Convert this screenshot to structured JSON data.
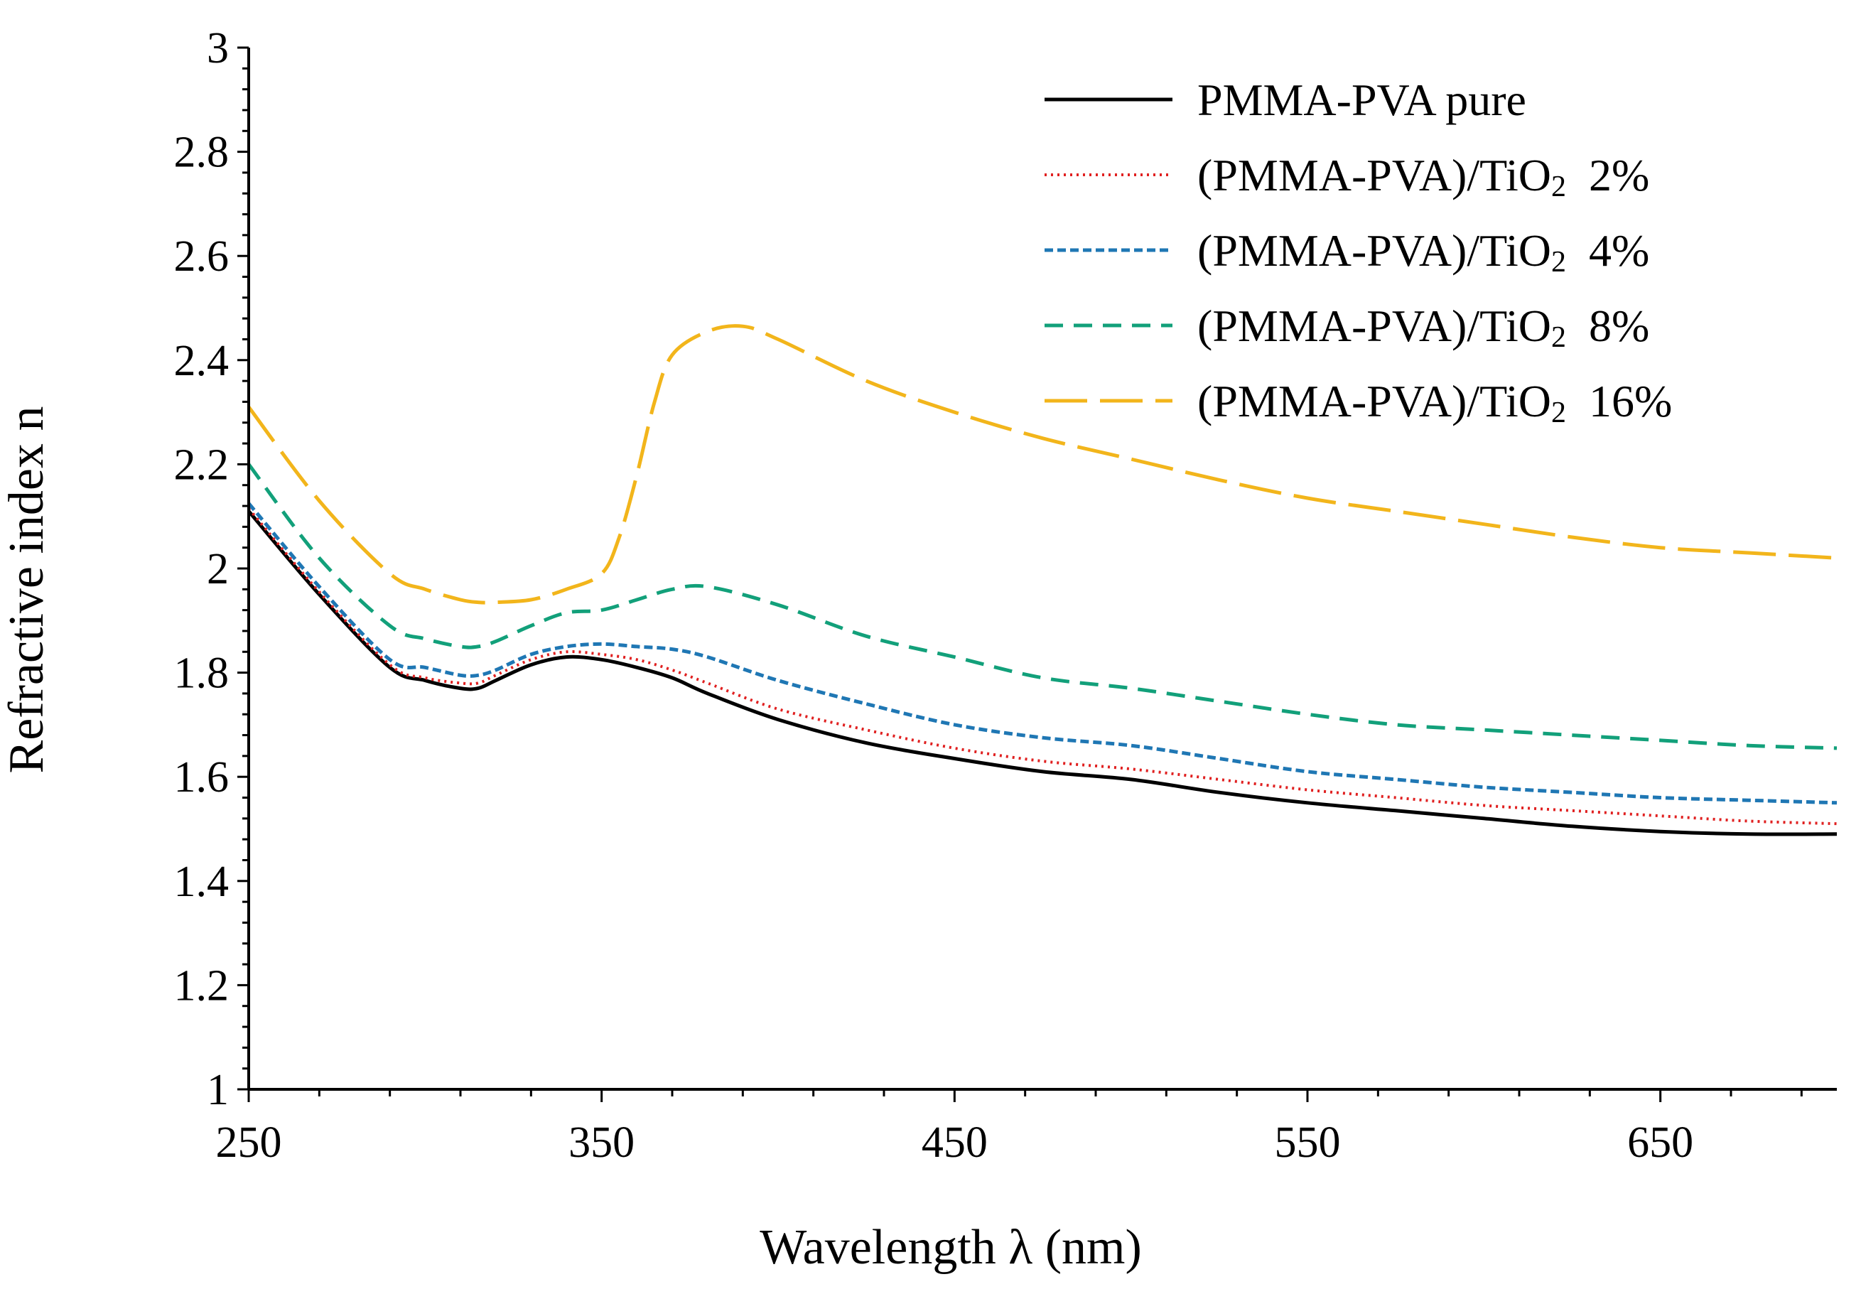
{
  "chart_data": {
    "type": "line",
    "title": "",
    "xlabel": "Wavelength λ (nm)",
    "ylabel": "Refractive  index  n",
    "xlim": [
      250,
      700
    ],
    "ylim": [
      1,
      3
    ],
    "x_ticks": [
      250,
      350,
      450,
      550,
      650
    ],
    "x_tick_labels": [
      "250",
      "350",
      "450",
      "550",
      "650"
    ],
    "y_ticks": [
      1,
      1.2,
      1.4,
      1.6,
      1.8,
      2,
      2.2,
      2.4,
      2.6,
      2.8,
      3
    ],
    "y_tick_labels": [
      "1",
      "1.2",
      "1.4",
      "1.6",
      "1.8",
      "2",
      "2.2",
      "2.4",
      "2.6",
      "2.8",
      "3"
    ],
    "grid": false,
    "legend_position": "top-right",
    "series": [
      {
        "name": "PMMA-PVA pure",
        "legend_main": "PMMA-PVA pure",
        "legend_sub": "",
        "legend_suffix": "",
        "color": "#000000",
        "dash": "solid",
        "x": [
          250,
          270,
          290,
          300,
          310,
          315,
          320,
          330,
          340,
          350,
          360,
          370,
          380,
          400,
          425,
          450,
          475,
          500,
          525,
          550,
          575,
          600,
          625,
          650,
          675,
          700
        ],
        "y": [
          2.11,
          1.95,
          1.81,
          1.785,
          1.77,
          1.77,
          1.785,
          1.815,
          1.83,
          1.825,
          1.81,
          1.79,
          1.76,
          1.71,
          1.665,
          1.635,
          1.61,
          1.595,
          1.57,
          1.55,
          1.535,
          1.52,
          1.505,
          1.495,
          1.49,
          1.49
        ]
      },
      {
        "name": "(PMMA-PVA)/TiO2 2%",
        "legend_main": "(PMMA-PVA)/TiO",
        "legend_sub": "2",
        "legend_suffix": "2%",
        "color": "#e02020",
        "dash": "dotted",
        "x": [
          250,
          270,
          290,
          300,
          310,
          315,
          320,
          330,
          340,
          350,
          360,
          370,
          380,
          400,
          425,
          450,
          475,
          500,
          525,
          550,
          575,
          600,
          625,
          650,
          675,
          700
        ],
        "y": [
          2.115,
          1.955,
          1.815,
          1.79,
          1.78,
          1.78,
          1.795,
          1.825,
          1.84,
          1.835,
          1.825,
          1.805,
          1.78,
          1.73,
          1.69,
          1.655,
          1.63,
          1.615,
          1.595,
          1.575,
          1.56,
          1.545,
          1.535,
          1.525,
          1.515,
          1.51
        ]
      },
      {
        "name": "(PMMA-PVA)/TiO2 4%",
        "legend_main": "(PMMA-PVA)/TiO",
        "legend_sub": "2",
        "legend_suffix": "4%",
        "color": "#1f77b4",
        "dash": "short-dash",
        "x": [
          250,
          270,
          290,
          300,
          310,
          315,
          320,
          330,
          340,
          350,
          360,
          370,
          380,
          400,
          425,
          450,
          475,
          500,
          525,
          550,
          575,
          600,
          625,
          650,
          675,
          700
        ],
        "y": [
          2.125,
          1.965,
          1.825,
          1.81,
          1.795,
          1.795,
          1.805,
          1.835,
          1.85,
          1.855,
          1.85,
          1.845,
          1.83,
          1.785,
          1.74,
          1.7,
          1.675,
          1.66,
          1.635,
          1.61,
          1.595,
          1.58,
          1.57,
          1.56,
          1.555,
          1.55
        ]
      },
      {
        "name": "(PMMA-PVA)/TiO2 8%",
        "legend_main": "(PMMA-PVA)/TiO",
        "legend_sub": "2",
        "legend_suffix": "8%",
        "color": "#12a07a",
        "dash": "dash",
        "x": [
          250,
          270,
          290,
          300,
          310,
          315,
          320,
          330,
          340,
          350,
          360,
          370,
          380,
          400,
          425,
          450,
          475,
          500,
          525,
          550,
          575,
          600,
          625,
          650,
          675,
          700
        ],
        "y": [
          2.2,
          2.02,
          1.89,
          1.865,
          1.85,
          1.85,
          1.86,
          1.89,
          1.915,
          1.92,
          1.94,
          1.96,
          1.965,
          1.93,
          1.87,
          1.83,
          1.79,
          1.77,
          1.745,
          1.72,
          1.7,
          1.69,
          1.68,
          1.67,
          1.66,
          1.655
        ]
      },
      {
        "name": "(PMMA-PVA)/TiO2 16%",
        "legend_main": "(PMMA-PVA)/TiO",
        "legend_sub": "2",
        "legend_suffix": "16%",
        "color": "#f2b51b",
        "dash": "long-dash",
        "x": [
          250,
          270,
          290,
          300,
          310,
          315,
          320,
          330,
          340,
          350,
          355,
          360,
          365,
          370,
          380,
          390,
          400,
          425,
          450,
          475,
          500,
          525,
          550,
          575,
          600,
          625,
          650,
          675,
          700
        ],
        "y": [
          2.31,
          2.13,
          1.99,
          1.96,
          1.94,
          1.935,
          1.935,
          1.94,
          1.96,
          1.99,
          2.06,
          2.18,
          2.32,
          2.41,
          2.455,
          2.465,
          2.44,
          2.36,
          2.3,
          2.25,
          2.21,
          2.17,
          2.135,
          2.11,
          2.085,
          2.06,
          2.04,
          2.03,
          2.02
        ]
      }
    ]
  }
}
